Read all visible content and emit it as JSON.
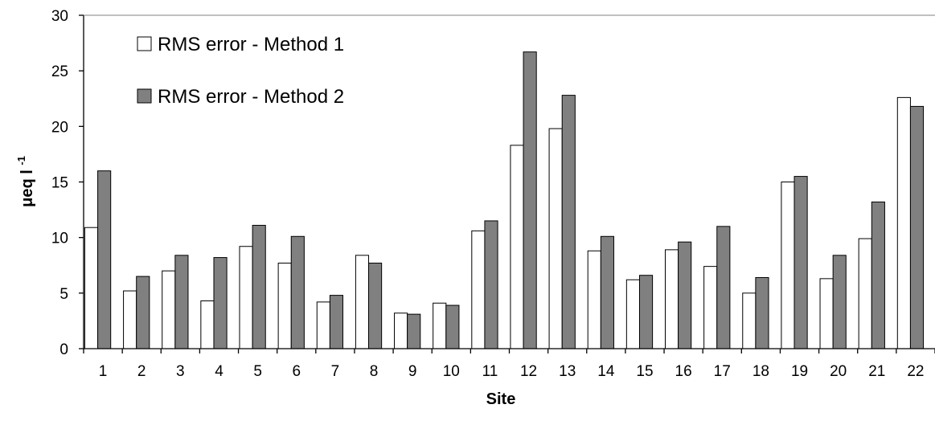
{
  "chart_data": {
    "type": "bar",
    "xlabel": "Site",
    "ylabel": "μeq l",
    "ylabel_sup": "-1",
    "ylim": [
      0,
      30
    ],
    "yticks": [
      "0",
      "5",
      "10",
      "15",
      "20",
      "25",
      "30"
    ],
    "grid": false,
    "legend_position": "top-left",
    "categories": [
      "1",
      "2",
      "3",
      "4",
      "5",
      "6",
      "7",
      "8",
      "9",
      "10",
      "11",
      "12",
      "13",
      "14",
      "15",
      "16",
      "17",
      "18",
      "19",
      "20",
      "21",
      "22"
    ],
    "series": [
      {
        "name": "RMS error - Method 1",
        "color": "#ffffff",
        "values": [
          10.9,
          5.2,
          7.0,
          4.3,
          9.2,
          7.7,
          4.2,
          8.4,
          3.2,
          4.1,
          10.6,
          18.3,
          19.8,
          8.8,
          6.2,
          8.9,
          7.4,
          5.0,
          15.0,
          6.3,
          9.9,
          22.6
        ]
      },
      {
        "name": "RMS error - Method 2",
        "color": "#808080",
        "values": [
          16.0,
          6.5,
          8.4,
          8.2,
          11.1,
          10.1,
          4.8,
          7.7,
          3.1,
          3.9,
          11.5,
          26.7,
          22.8,
          10.1,
          6.6,
          9.6,
          11.0,
          6.4,
          15.5,
          8.4,
          13.2,
          21.8
        ]
      }
    ]
  }
}
